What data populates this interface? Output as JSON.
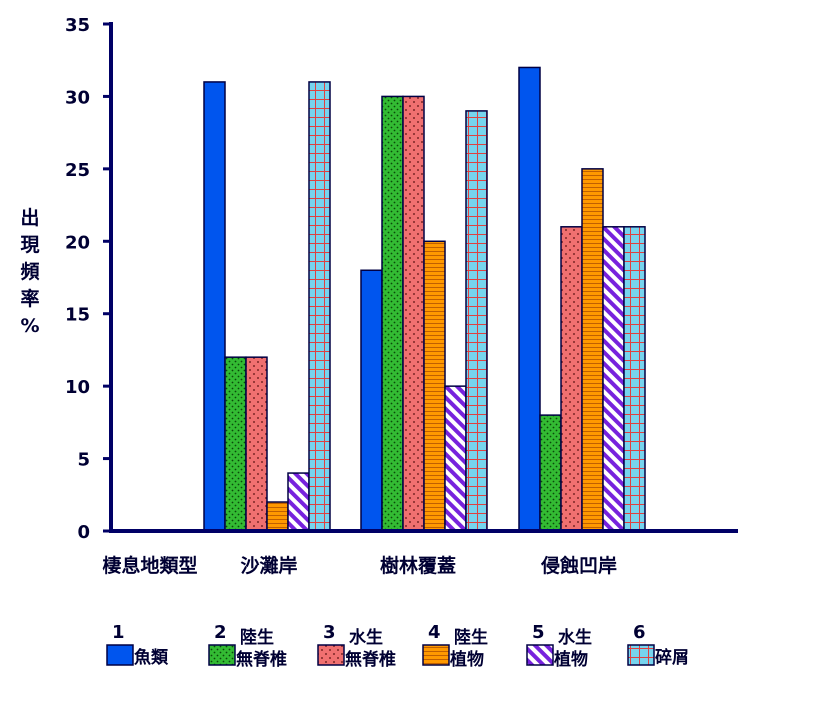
{
  "chart_data": {
    "type": "bar",
    "ylabel": [
      "出",
      "現",
      "頻",
      "率",
      "%"
    ],
    "xlabel": "棲息地類型",
    "categories": [
      "沙灘岸",
      "樹林覆蓋",
      "侵蝕凹岸"
    ],
    "ylim": [
      0,
      35
    ],
    "yticks": [
      0,
      5,
      10,
      15,
      20,
      25,
      30,
      35
    ],
    "grid": false,
    "legend_position": "bottom",
    "series": [
      {
        "num": "1",
        "name": [
          "魚類"
        ],
        "values": [
          31,
          18,
          32
        ],
        "color": "#0055ee",
        "pattern": "solid"
      },
      {
        "num": "2",
        "name": [
          "陸生",
          "無脊椎"
        ],
        "values": [
          12,
          30,
          8
        ],
        "color": "#33bb33",
        "pattern": "dots"
      },
      {
        "num": "3",
        "name": [
          "水生",
          "無脊椎"
        ],
        "values": [
          12,
          30,
          21
        ],
        "color": "#f07070",
        "pattern": "dots"
      },
      {
        "num": "4",
        "name": [
          "陸生",
          "植物"
        ],
        "values": [
          2,
          20,
          25
        ],
        "color": "#ff9900",
        "pattern": "hstripes"
      },
      {
        "num": "5",
        "name": [
          "水生",
          "植物"
        ],
        "values": [
          4,
          10,
          21
        ],
        "color": "#7722dd",
        "pattern": "diagonal"
      },
      {
        "num": "6",
        "name": [
          "碎屑"
        ],
        "values": [
          31,
          29,
          21
        ],
        "color": "#77d4ee",
        "pattern": "grid"
      }
    ]
  }
}
